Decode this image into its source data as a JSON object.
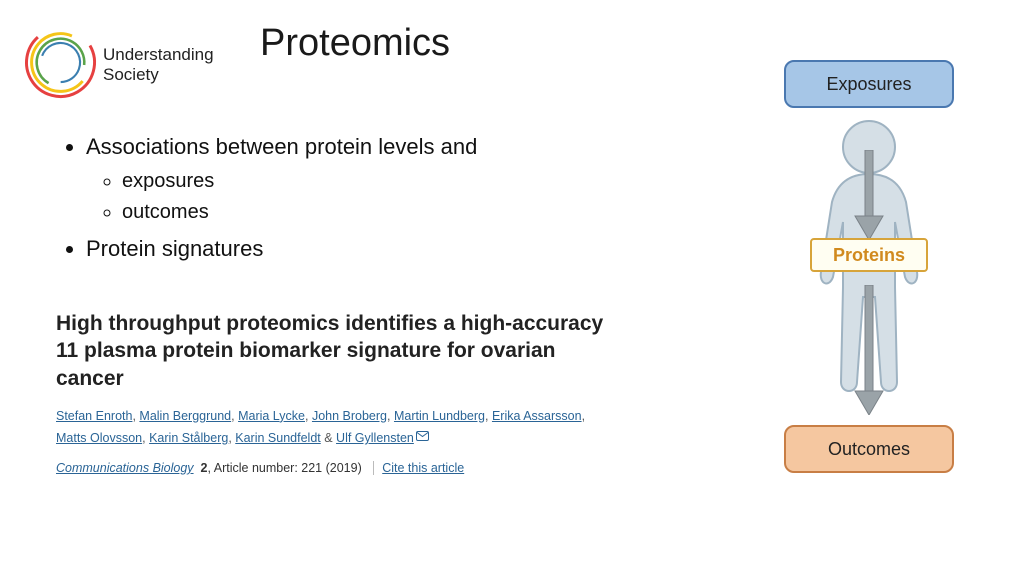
{
  "logo": {
    "line1": "Understanding",
    "line2": "Society"
  },
  "title": "Proteomics",
  "bullets": {
    "item1": "Associations between protein levels and",
    "sub1": "exposures",
    "sub2": "outcomes",
    "item2": "Protein signatures"
  },
  "paper": {
    "title": "High throughput proteomics identifies a high-accuracy 11 plasma protein biomarker signature for ovarian cancer",
    "authors": [
      "Stefan Enroth",
      "Malin Berggrund",
      "Maria Lycke",
      "John Broberg",
      "Martin Lundberg",
      "Erika Assarsson",
      "Matts Olovsson",
      "Karin Stålberg",
      "Karin Sundfeldt",
      "Ulf Gyllensten"
    ],
    "journal": "Communications Biology",
    "volume": "2",
    "article_num": ", Article number: 221 (2019)",
    "cite": "Cite this article"
  },
  "diagram": {
    "exposures": "Exposures",
    "proteins": "Proteins",
    "outcomes": "Outcomes",
    "colors": {
      "exposures_fill": "#a6c6e7",
      "exposures_border": "#4a78b0",
      "proteins_fill": "#fffef2",
      "proteins_border": "#d7a43a",
      "proteins_text": "#d18a1e",
      "outcomes_fill": "#f5c7a0",
      "outcomes_border": "#c87e45",
      "arrow": "#9aa3a8",
      "human_fill": "#d5dfe6",
      "human_stroke": "#9fb3c2"
    }
  }
}
